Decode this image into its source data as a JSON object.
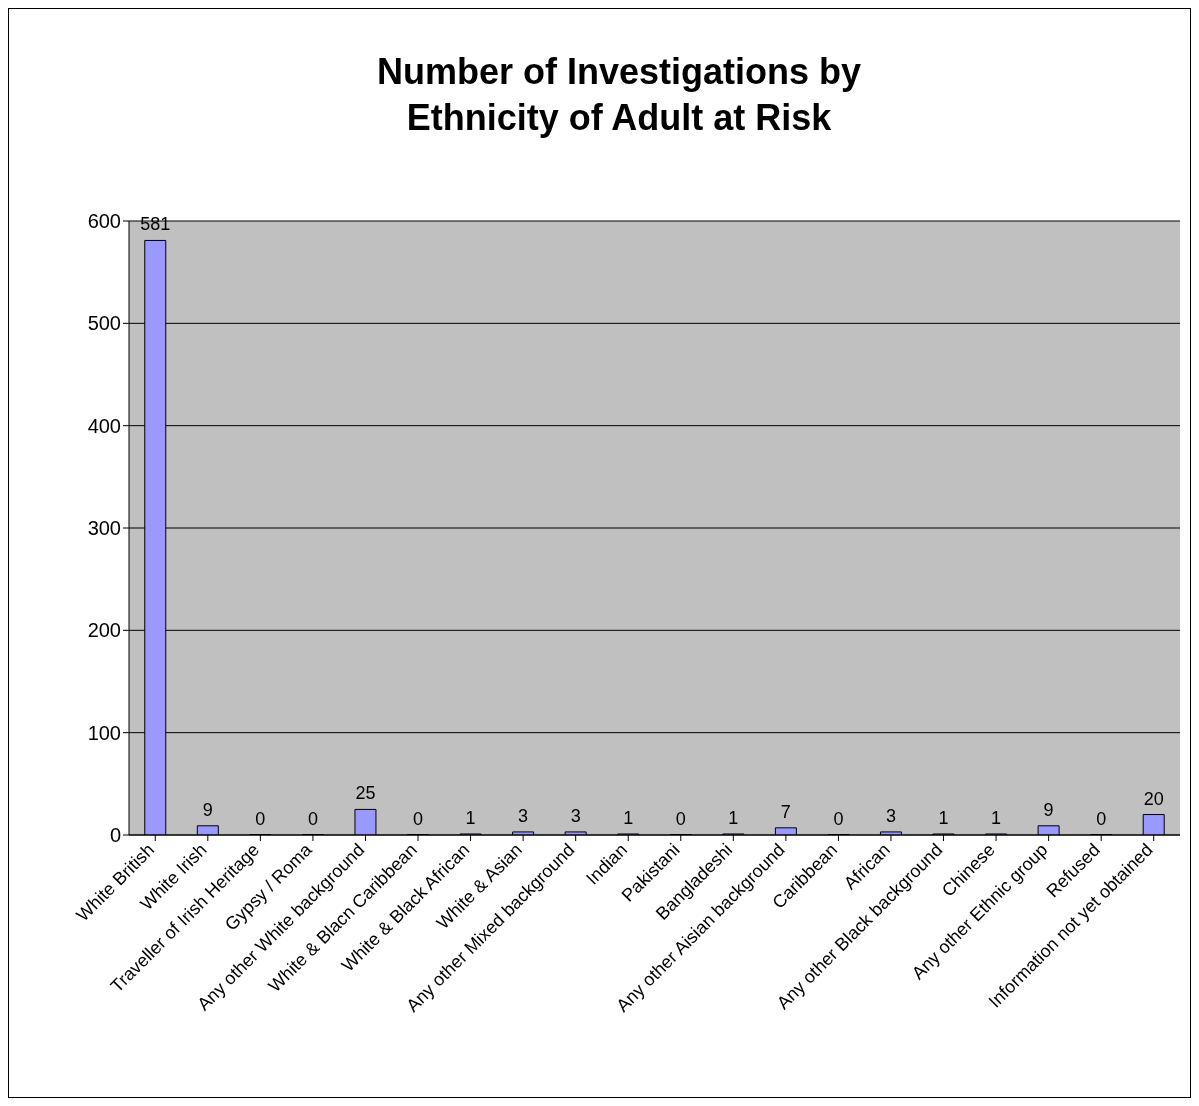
{
  "chart_data": {
    "type": "bar",
    "title": "Number of Investigations by Ethnicity of Adult at Risk",
    "categories": [
      "White British",
      "White Irish",
      "Traveller of Irish Heritage",
      "Gypsy / Roma",
      "Any other White background",
      "White & Blacn Caribbean",
      "White & Black African",
      "White & Asian",
      "Any other Mixed background",
      "Indian",
      "Pakistani",
      "Bangladeshi",
      "Any other Aisian background",
      "Caribbean",
      "African",
      "Any other Black background",
      "Chinese",
      "Any other Ethnic group",
      "Refused",
      "Information not yet obtained"
    ],
    "values": [
      581,
      9,
      0,
      0,
      25,
      0,
      1,
      3,
      3,
      1,
      0,
      1,
      7,
      0,
      3,
      1,
      1,
      9,
      0,
      20
    ],
    "color": "#9999ff",
    "ylim": [
      0,
      600
    ],
    "yticks": [
      0,
      100,
      200,
      300,
      400,
      500,
      600
    ],
    "grid": "y",
    "data_labels": true
  }
}
